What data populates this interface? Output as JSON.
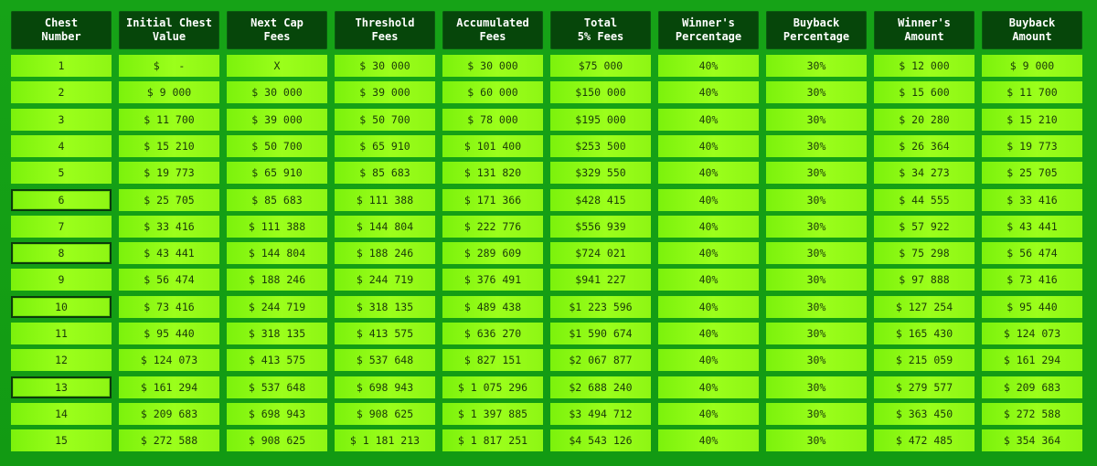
{
  "headers": [
    "Chest\nNumber",
    "Initial Chest\nValue",
    "Next Cap\nFees",
    "Threshold\nFees",
    "Accumulated\nFees",
    "Total\n5% Fees",
    "Winner's\nPercentage",
    "Buyback\nPercentage",
    "Winner's\nAmount",
    "Buyback\nAmount"
  ],
  "rows": [
    {
      "num": "1",
      "initial": "$   -",
      "next": "X",
      "threshold": "$ 30 000",
      "accumulated": "$ 30 000",
      "total": "$75 000",
      "winner_pct": "40%",
      "buyback_pct": "30%",
      "winner_amt": "$ 12 000",
      "buyback_amt": "$ 9 000",
      "selected": false
    },
    {
      "num": "2",
      "initial": "$ 9 000",
      "next": "$ 30 000",
      "threshold": "$ 39 000",
      "accumulated": "$ 60 000",
      "total": "$150 000",
      "winner_pct": "40%",
      "buyback_pct": "30%",
      "winner_amt": "$ 15 600",
      "buyback_amt": "$ 11 700",
      "selected": false
    },
    {
      "num": "3",
      "initial": "$ 11 700",
      "next": "$ 39 000",
      "threshold": "$ 50 700",
      "accumulated": "$ 78 000",
      "total": "$195 000",
      "winner_pct": "40%",
      "buyback_pct": "30%",
      "winner_amt": "$ 20 280",
      "buyback_amt": "$ 15 210",
      "selected": false
    },
    {
      "num": "4",
      "initial": "$ 15 210",
      "next": "$ 50 700",
      "threshold": "$ 65 910",
      "accumulated": "$ 101 400",
      "total": "$253 500",
      "winner_pct": "40%",
      "buyback_pct": "30%",
      "winner_amt": "$ 26 364",
      "buyback_amt": "$ 19 773",
      "selected": false
    },
    {
      "num": "5",
      "initial": "$ 19 773",
      "next": "$ 65 910",
      "threshold": "$ 85 683",
      "accumulated": "$ 131 820",
      "total": "$329 550",
      "winner_pct": "40%",
      "buyback_pct": "30%",
      "winner_amt": "$ 34 273",
      "buyback_amt": "$ 25 705",
      "selected": false
    },
    {
      "num": "6",
      "initial": "$ 25 705",
      "next": "$ 85 683",
      "threshold": "$ 111 388",
      "accumulated": "$ 171 366",
      "total": "$428 415",
      "winner_pct": "40%",
      "buyback_pct": "30%",
      "winner_amt": "$ 44 555",
      "buyback_amt": "$ 33 416",
      "selected": true
    },
    {
      "num": "7",
      "initial": "$ 33 416",
      "next": "$ 111 388",
      "threshold": "$ 144 804",
      "accumulated": "$ 222 776",
      "total": "$556 939",
      "winner_pct": "40%",
      "buyback_pct": "30%",
      "winner_amt": "$ 57 922",
      "buyback_amt": "$ 43 441",
      "selected": false
    },
    {
      "num": "8",
      "initial": "$ 43 441",
      "next": "$ 144 804",
      "threshold": "$ 188 246",
      "accumulated": "$ 289 609",
      "total": "$724 021",
      "winner_pct": "40%",
      "buyback_pct": "30%",
      "winner_amt": "$ 75 298",
      "buyback_amt": "$ 56 474",
      "selected": true
    },
    {
      "num": "9",
      "initial": "$ 56 474",
      "next": "$ 188 246",
      "threshold": "$ 244 719",
      "accumulated": "$ 376 491",
      "total": "$941 227",
      "winner_pct": "40%",
      "buyback_pct": "30%",
      "winner_amt": "$ 97 888",
      "buyback_amt": "$ 73 416",
      "selected": false
    },
    {
      "num": "10",
      "initial": "$ 73 416",
      "next": "$ 244 719",
      "threshold": "$ 318 135",
      "accumulated": "$ 489 438",
      "total": "$1 223 596",
      "winner_pct": "40%",
      "buyback_pct": "30%",
      "winner_amt": "$ 127 254",
      "buyback_amt": "$ 95 440",
      "selected": true
    },
    {
      "num": "11",
      "initial": "$ 95 440",
      "next": "$ 318 135",
      "threshold": "$ 413 575",
      "accumulated": "$ 636 270",
      "total": "$1 590 674",
      "winner_pct": "40%",
      "buyback_pct": "30%",
      "winner_amt": "$ 165 430",
      "buyback_amt": "$ 124 073",
      "selected": false
    },
    {
      "num": "12",
      "initial": "$ 124 073",
      "next": "$ 413 575",
      "threshold": "$ 537 648",
      "accumulated": "$ 827 151",
      "total": "$2 067 877",
      "winner_pct": "40%",
      "buyback_pct": "30%",
      "winner_amt": "$ 215 059",
      "buyback_amt": "$ 161 294",
      "selected": false
    },
    {
      "num": "13",
      "initial": "$ 161 294",
      "next": "$ 537 648",
      "threshold": "$ 698 943",
      "accumulated": "$ 1 075 296",
      "total": "$2 688 240",
      "winner_pct": "40%",
      "buyback_pct": "30%",
      "winner_amt": "$ 279 577",
      "buyback_amt": "$ 209 683",
      "selected": true
    },
    {
      "num": "14",
      "initial": "$ 209 683",
      "next": "$ 698 943",
      "threshold": "$ 908 625",
      "accumulated": "$ 1 397 885",
      "total": "$3 494 712",
      "winner_pct": "40%",
      "buyback_pct": "30%",
      "winner_amt": "$ 363 450",
      "buyback_amt": "$ 272 588",
      "selected": false
    },
    {
      "num": "15",
      "initial": "$ 272 588",
      "next": "$ 908 625",
      "threshold": "$ 1 181 213",
      "accumulated": "$ 1 817 251",
      "total": "$4 543 126",
      "winner_pct": "40%",
      "buyback_pct": "30%",
      "winner_amt": "$ 472 485",
      "buyback_amt": "$ 354 364",
      "selected": false
    }
  ]
}
